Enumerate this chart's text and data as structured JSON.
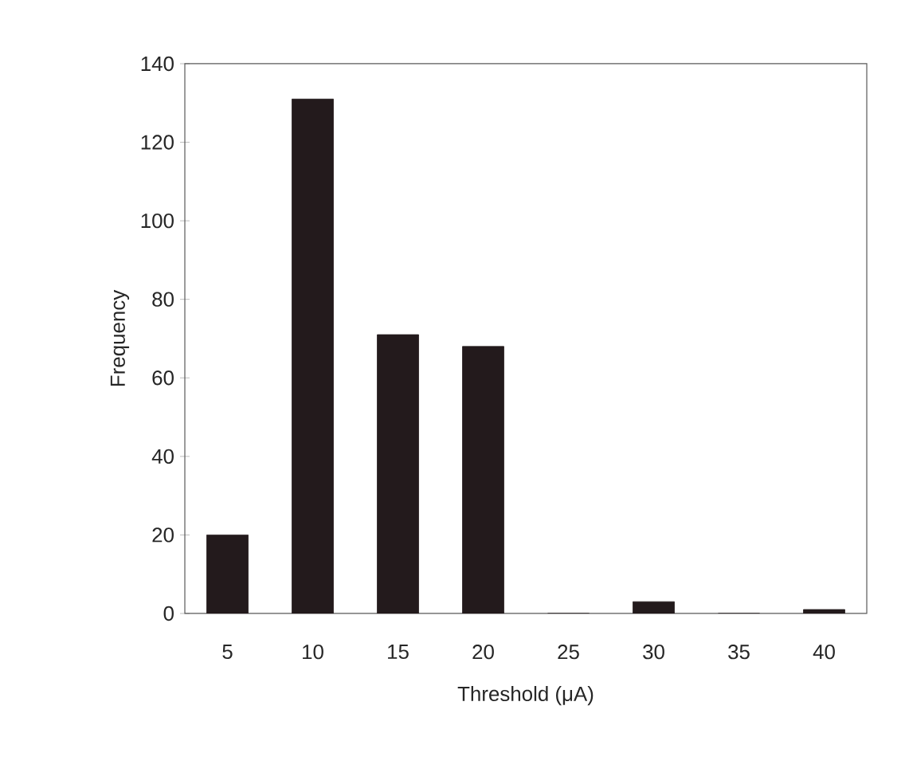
{
  "chart_data": {
    "type": "bar",
    "xlabel": "Threshold (μA)",
    "ylabel": "Frequency",
    "categories": [
      "5",
      "10",
      "15",
      "20",
      "25",
      "30",
      "35",
      "40"
    ],
    "values": [
      20,
      131,
      71,
      68,
      0,
      3,
      0,
      1
    ],
    "color": "#231a1c",
    "ylim": [
      0,
      140
    ],
    "yticks": [
      0,
      20,
      40,
      60,
      80,
      100,
      120,
      140
    ],
    "grid": false
  }
}
